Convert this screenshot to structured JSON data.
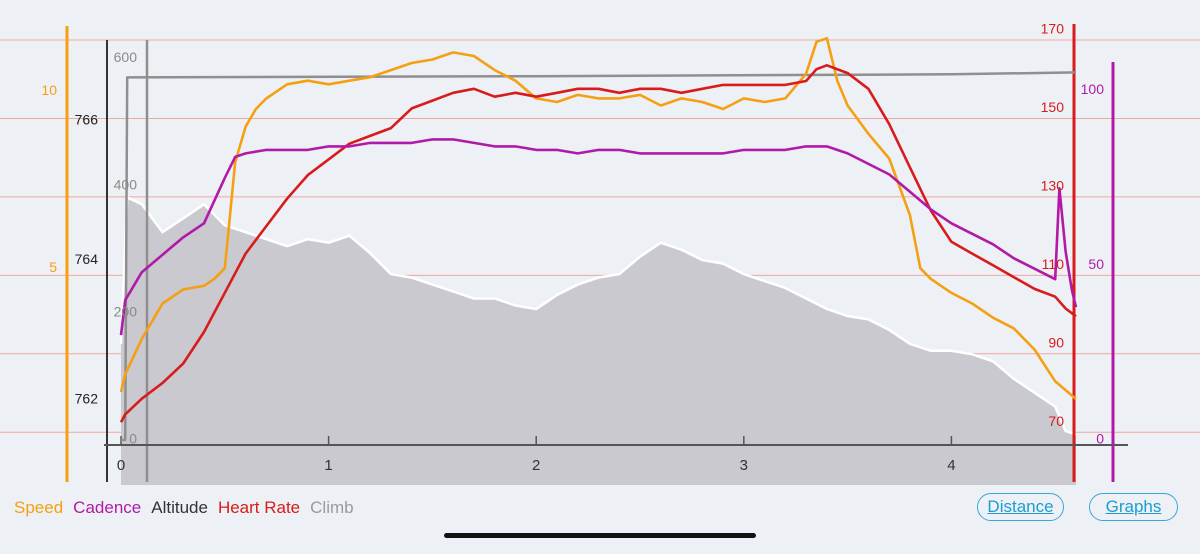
{
  "chart_data": {
    "type": "line",
    "x_axis": {
      "ticks": [
        0,
        1,
        2,
        3,
        4
      ],
      "range": [
        0,
        4.6
      ]
    },
    "axes": {
      "speed": {
        "ticks": [
          5,
          10
        ],
        "range": [
          0,
          12.3
        ],
        "color": "#f4a012"
      },
      "altitude": {
        "ticks": [
          762,
          764,
          766
        ],
        "range": [
          761.35,
          767.5
        ],
        "color": "#222222"
      },
      "climb": {
        "ticks": [
          0,
          200,
          400,
          600
        ],
        "range": [
          0,
          610
        ],
        "color": "#8a8a8a"
      },
      "heart_rate": {
        "ticks": [
          70,
          90,
          110,
          130,
          150,
          170
        ],
        "range": [
          67,
          170
        ],
        "color": "#d81b1b"
      },
      "cadence": {
        "ticks": [
          0,
          50,
          100
        ],
        "range": [
          0,
          105
        ],
        "color": "#b11aa9"
      }
    },
    "series": [
      {
        "name": "Altitude",
        "axis": "altitude",
        "color": "#c9c9cf",
        "x": [
          0,
          0.03,
          0.1,
          0.2,
          0.3,
          0.4,
          0.5,
          0.6,
          0.7,
          0.8,
          0.9,
          1.0,
          1.1,
          1.2,
          1.3,
          1.4,
          1.5,
          1.6,
          1.7,
          1.8,
          1.9,
          2.0,
          2.1,
          2.2,
          2.3,
          2.4,
          2.5,
          2.6,
          2.7,
          2.8,
          2.9,
          3.0,
          3.1,
          3.2,
          3.3,
          3.4,
          3.5,
          3.6,
          3.7,
          3.8,
          3.9,
          4.0,
          4.1,
          4.2,
          4.3,
          4.4,
          4.5,
          4.55,
          4.6
        ],
        "values": [
          762.8,
          764.9,
          764.8,
          764.4,
          764.6,
          764.8,
          764.5,
          764.4,
          764.3,
          764.2,
          764.3,
          764.25,
          764.35,
          764.1,
          763.8,
          763.75,
          763.65,
          763.55,
          763.45,
          763.45,
          763.35,
          763.3,
          763.5,
          763.65,
          763.75,
          763.8,
          764.05,
          764.25,
          764.15,
          764.0,
          763.95,
          763.8,
          763.7,
          763.6,
          763.45,
          763.3,
          763.2,
          763.15,
          763.0,
          762.8,
          762.7,
          762.7,
          762.65,
          762.55,
          762.3,
          762.1,
          761.9,
          761.55,
          761.5
        ]
      },
      {
        "name": "Climb",
        "axis": "climb",
        "color": "#8f8f8f",
        "x": [
          0,
          0.02,
          0.03,
          2.0,
          4.0,
          4.6
        ],
        "values": [
          0,
          0,
          570,
          572,
          575,
          578
        ]
      },
      {
        "name": "Speed",
        "axis": "speed",
        "color": "#f4a012",
        "x": [
          0,
          0.02,
          0.1,
          0.2,
          0.3,
          0.4,
          0.45,
          0.5,
          0.55,
          0.6,
          0.65,
          0.7,
          0.8,
          0.9,
          1.0,
          1.1,
          1.2,
          1.3,
          1.4,
          1.5,
          1.6,
          1.7,
          1.8,
          1.9,
          2.0,
          2.1,
          2.2,
          2.3,
          2.4,
          2.5,
          2.6,
          2.7,
          2.8,
          2.9,
          3.0,
          3.1,
          3.2,
          3.3,
          3.35,
          3.4,
          3.45,
          3.5,
          3.6,
          3.7,
          3.8,
          3.85,
          3.9,
          4.0,
          4.1,
          4.2,
          4.3,
          4.4,
          4.5,
          4.6
        ],
        "values": [
          1.5,
          2.0,
          3.0,
          4.0,
          4.4,
          4.5,
          4.7,
          5.0,
          8.0,
          9.0,
          9.5,
          9.8,
          10.2,
          10.3,
          10.2,
          10.3,
          10.4,
          10.6,
          10.8,
          10.9,
          11.1,
          11.0,
          10.6,
          10.3,
          9.8,
          9.7,
          9.9,
          9.8,
          9.8,
          9.9,
          9.6,
          9.8,
          9.7,
          9.5,
          9.8,
          9.7,
          9.8,
          10.5,
          11.4,
          11.5,
          10.3,
          9.6,
          8.8,
          8.1,
          6.5,
          5.0,
          4.7,
          4.3,
          4.0,
          3.6,
          3.3,
          2.7,
          1.8,
          1.3
        ]
      },
      {
        "name": "Heart Rate",
        "axis": "heart_rate",
        "color": "#d81b1b",
        "x": [
          0,
          0.02,
          0.1,
          0.2,
          0.3,
          0.4,
          0.5,
          0.6,
          0.7,
          0.8,
          0.9,
          1.0,
          1.1,
          1.2,
          1.3,
          1.4,
          1.5,
          1.6,
          1.7,
          1.8,
          1.9,
          2.0,
          2.1,
          2.2,
          2.3,
          2.4,
          2.5,
          2.6,
          2.7,
          2.8,
          2.9,
          3.0,
          3.1,
          3.2,
          3.3,
          3.35,
          3.4,
          3.5,
          3.6,
          3.7,
          3.8,
          3.9,
          4.0,
          4.1,
          4.2,
          4.3,
          4.4,
          4.5,
          4.55,
          4.6
        ],
        "values": [
          70,
          72,
          76,
          80,
          85,
          93,
          103,
          113,
          120,
          127,
          133,
          137,
          141,
          143,
          145,
          150,
          152,
          154,
          155,
          153,
          154,
          153,
          154,
          155,
          155,
          154,
          155,
          155,
          154,
          155,
          156,
          156,
          156,
          156,
          157,
          160,
          161,
          159,
          155,
          146,
          135,
          124,
          116,
          113,
          110,
          107,
          104,
          102,
          99,
          97
        ]
      },
      {
        "name": "Cadence",
        "axis": "cadence",
        "color": "#b11aa9",
        "x": [
          0,
          0.02,
          0.1,
          0.2,
          0.3,
          0.4,
          0.5,
          0.55,
          0.6,
          0.7,
          0.8,
          0.9,
          1.0,
          1.1,
          1.2,
          1.3,
          1.4,
          1.5,
          1.6,
          1.7,
          1.8,
          1.9,
          2.0,
          2.1,
          2.2,
          2.3,
          2.4,
          2.5,
          2.6,
          2.7,
          2.8,
          2.9,
          3.0,
          3.1,
          3.2,
          3.3,
          3.4,
          3.5,
          3.6,
          3.7,
          3.8,
          3.9,
          4.0,
          4.1,
          4.2,
          4.3,
          4.4,
          4.5,
          4.52,
          4.55,
          4.58,
          4.6
        ],
        "values": [
          30,
          40,
          48,
          53,
          58,
          62,
          75,
          81,
          82,
          83,
          83,
          83,
          84,
          84,
          85,
          85,
          85,
          86,
          86,
          85,
          84,
          84,
          83,
          83,
          82,
          83,
          83,
          82,
          82,
          82,
          82,
          82,
          83,
          83,
          83,
          84,
          84,
          82,
          79,
          76,
          71,
          66,
          62,
          59,
          56,
          52,
          49,
          46,
          72,
          54,
          43,
          38
        ]
      }
    ]
  },
  "legend": {
    "speed": "Speed",
    "cadence": "Cadence",
    "altitude": "Altitude",
    "heart_rate": "Heart Rate",
    "climb": "Climb"
  },
  "buttons": {
    "distance": "Distance",
    "graphs": "Graphs"
  }
}
